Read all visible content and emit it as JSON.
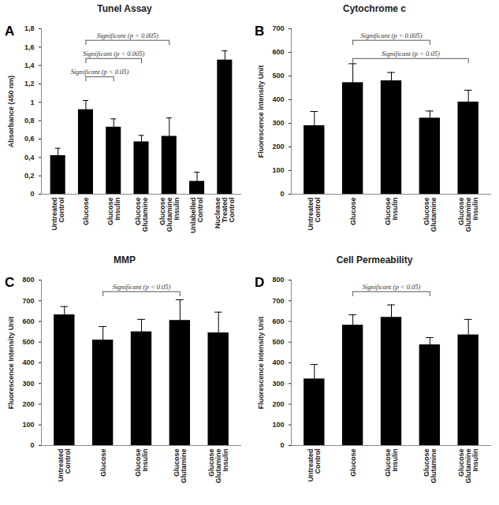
{
  "chart_data": [
    {
      "type": "bar",
      "panel": "A",
      "title": "Tunel Assay",
      "y_label": "Absorbance (450 nm)",
      "categories": [
        "Untreated Control",
        "Glucose",
        "Glucose Insulin",
        "Glucose Glutamine",
        "Glucose Glutamine Insulin",
        "Unlabelled Control",
        "Nuclease Treated Control"
      ],
      "values": [
        0.42,
        0.92,
        0.73,
        0.57,
        0.63,
        0.14,
        1.46
      ],
      "errors": [
        0.08,
        0.1,
        0.09,
        0.07,
        0.2,
        0.1,
        0.1
      ],
      "color": "#000000",
      "ylim": [
        0,
        1.8
      ],
      "yticks": [
        0,
        {
          "value": 0.2,
          "label": "0,2"
        },
        {
          "value": 0.4,
          "label": "0,4"
        },
        {
          "value": 0.6,
          "label": "0,6"
        },
        {
          "value": 0.8,
          "label": "0,8"
        },
        1,
        {
          "value": 1.2,
          "label": "1,2"
        },
        {
          "value": 1.4,
          "label": "1,4"
        },
        {
          "value": 1.6,
          "label": "1,6"
        },
        {
          "value": 1.8,
          "label": "1,8"
        }
      ],
      "annotations": [
        {
          "text": "Significant (p < 0.005)",
          "from": "Glucose",
          "to": "Glucose Glutamine Insulin"
        },
        {
          "text": "Significant (p < 0.005)",
          "from": "Glucose",
          "to": "Glucose Glutamine"
        },
        {
          "text": "Significant (p < 0.05)",
          "from": "Glucose",
          "to": "Glucose Insulin"
        }
      ]
    },
    {
      "type": "bar",
      "panel": "B",
      "title": "Cytochrome c",
      "y_label": "Fluorescence Intensity Unit",
      "categories": [
        "Untreated Control",
        "Glucose",
        "Glucose Insulin",
        "Glucose Glutamine",
        "Glucose Glutamine Insulin"
      ],
      "values": [
        290,
        472,
        480,
        322,
        390
      ],
      "errors": [
        60,
        80,
        35,
        30,
        50
      ],
      "color": "#000000",
      "ylim": [
        0,
        700
      ],
      "yticks": [
        0,
        100,
        200,
        300,
        400,
        500,
        600,
        700
      ],
      "annotations": [
        {
          "text": "Significant (p < 0.005)",
          "from": "Glucose",
          "to": "Glucose Glutamine"
        },
        {
          "text": "Significant (p < 0.05)",
          "from": "Glucose",
          "to": "Glucose Glutamine Insulin"
        }
      ]
    },
    {
      "type": "bar",
      "panel": "C",
      "title": "MMP",
      "y_label": "Fluorescence Intensity Unit",
      "categories": [
        "Untreated Control",
        "Glucose",
        "Glucose Insulin",
        "Glucose Glutamine",
        "Glucose Glutamine Insulin"
      ],
      "values": [
        632,
        510,
        550,
        605,
        545
      ],
      "errors": [
        40,
        65,
        60,
        100,
        100
      ],
      "color": "#000000",
      "ylim": [
        0,
        800
      ],
      "yticks": [
        0,
        100,
        200,
        300,
        400,
        500,
        600,
        700,
        800
      ],
      "annotations": [
        {
          "text": "Significant (p < 0.05)",
          "from": "Glucose",
          "to": "Glucose Glutamine"
        }
      ]
    },
    {
      "type": "bar",
      "panel": "D",
      "title": "Cell Permeability",
      "y_label": "Fluorescence Intensity Unit",
      "categories": [
        "Untreated Control",
        "Glucose",
        "Glucose Insulin",
        "Glucose Glutamine",
        "Glucose Glutamine Insulin"
      ],
      "values": [
        322,
        582,
        620,
        487,
        535
      ],
      "errors": [
        70,
        50,
        60,
        35,
        75
      ],
      "color": "#000000",
      "ylim": [
        0,
        800
      ],
      "yticks": [
        0,
        100,
        200,
        300,
        400,
        500,
        600,
        700,
        800
      ],
      "annotations": [
        {
          "text": "Significant (p < 0.05)",
          "from": "Glucose",
          "to": "Glucose Glutamine"
        }
      ]
    }
  ]
}
